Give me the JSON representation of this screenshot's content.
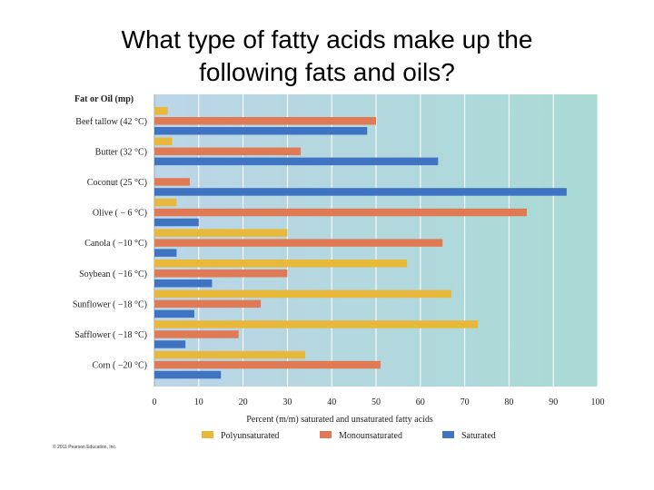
{
  "slide": {
    "title_line1": "What type of fatty acids make up the",
    "title_line2": "following fats and oils?",
    "credit": "© 2011 Pearson Education, Inc."
  },
  "chart_data": {
    "type": "bar",
    "orientation": "horizontal",
    "category_header": "Fat or Oil (mp)",
    "categories": [
      "Beef tallow (42 °C)",
      "Butter (32 °C)",
      "Coconut (25 °C)",
      "Olive ( − 6 °C)",
      "Canola ( −10 °C)",
      "Soybean ( −16 °C)",
      "Sunflower ( −18 °C)",
      "Safflower ( −18 °C)",
      "Corn ( −20 °C)"
    ],
    "series": [
      {
        "name": "Polyunsaturated",
        "color": "#e8b83a",
        "values": [
          3,
          4,
          0,
          5,
          30,
          57,
          67,
          73,
          34
        ]
      },
      {
        "name": "Monounsaturated",
        "color": "#e07a55",
        "values": [
          50,
          33,
          8,
          84,
          65,
          30,
          24,
          19,
          51
        ]
      },
      {
        "name": "Saturated",
        "color": "#3e74c2",
        "values": [
          48,
          64,
          93,
          10,
          5,
          13,
          9,
          7,
          15
        ]
      }
    ],
    "xlabel": "Percent (m/m) saturated and unsaturated fatty acids",
    "ylabel": "",
    "xlim": [
      0,
      100
    ],
    "xticks": [
      0,
      10,
      20,
      30,
      40,
      50,
      60,
      70,
      80,
      90,
      100
    ],
    "grid": true,
    "legend_position": "bottom",
    "plot_background": [
      "#bcd6e8",
      "#a9dad4"
    ]
  }
}
